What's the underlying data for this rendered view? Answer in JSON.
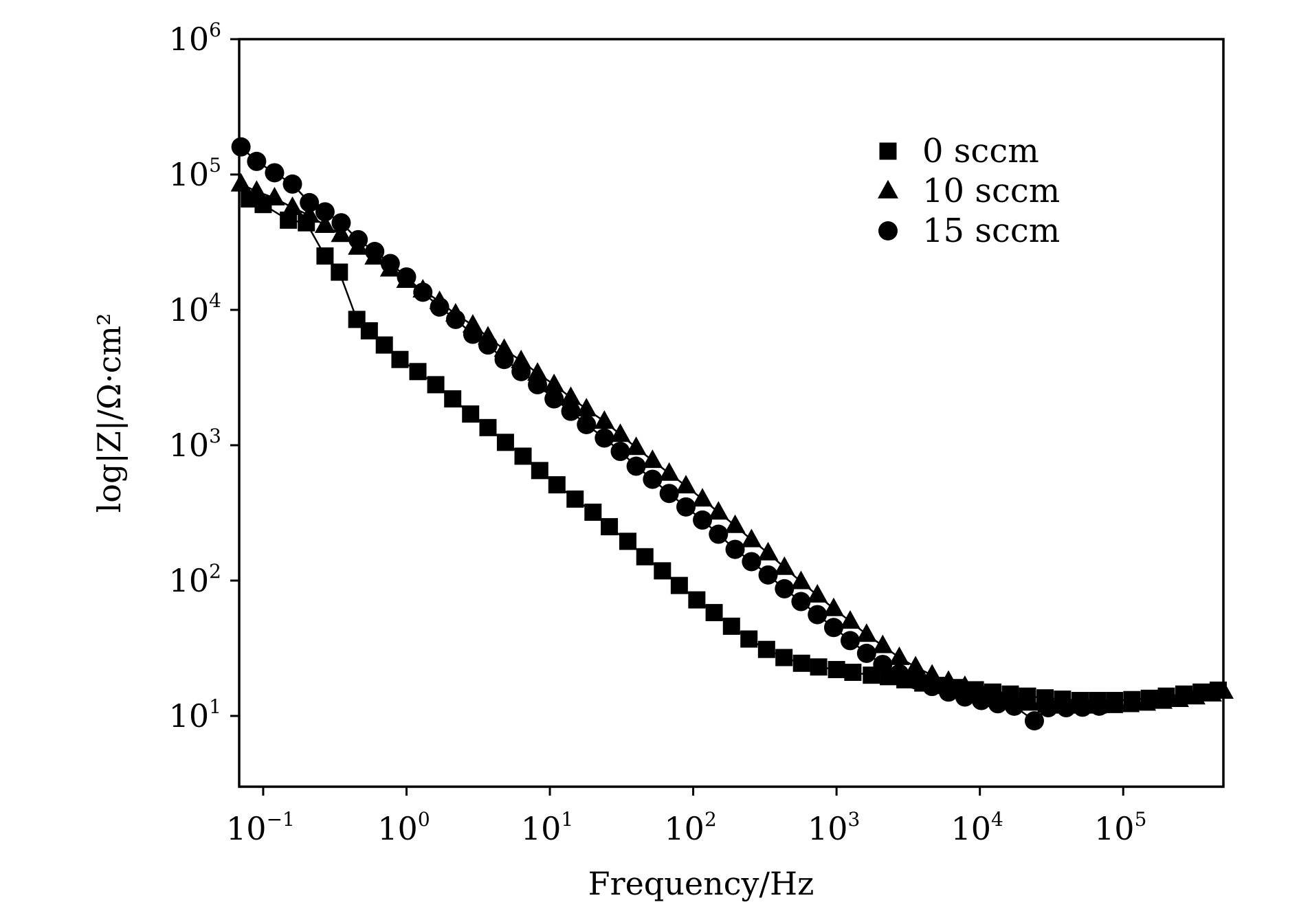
{
  "chart_data": {
    "type": "scatter",
    "xlabel": "Frequency/Hz",
    "ylabel": "log|Z|/Ω·cm²",
    "xscale": "log",
    "yscale": "log",
    "xlim": [
      0.068,
      500000
    ],
    "ylim": [
      3,
      1000000
    ],
    "grid": false,
    "legend_position": "top-right",
    "x_ticks": [
      {
        "base": "10",
        "exp": "−1",
        "value": 0.1
      },
      {
        "base": "10",
        "exp": "0",
        "value": 1
      },
      {
        "base": "10",
        "exp": "1",
        "value": 10
      },
      {
        "base": "10",
        "exp": "2",
        "value": 100
      },
      {
        "base": "10",
        "exp": "3",
        "value": 1000
      },
      {
        "base": "10",
        "exp": "4",
        "value": 10000
      },
      {
        "base": "10",
        "exp": "5",
        "value": 100000
      }
    ],
    "y_ticks": [
      {
        "base": "10",
        "exp": "1",
        "value": 10
      },
      {
        "base": "10",
        "exp": "2",
        "value": 100
      },
      {
        "base": "10",
        "exp": "3",
        "value": 1000
      },
      {
        "base": "10",
        "exp": "4",
        "value": 10000
      },
      {
        "base": "10",
        "exp": "5",
        "value": 100000
      },
      {
        "base": "10",
        "exp": "6",
        "value": 1000000
      }
    ],
    "series": [
      {
        "name": "0 sccm",
        "marker": "square",
        "points": [
          [
            0.08,
            66000
          ],
          [
            0.1,
            60000
          ],
          [
            0.15,
            46000
          ],
          [
            0.2,
            44000
          ],
          [
            0.27,
            25000
          ],
          [
            0.34,
            19000
          ],
          [
            0.45,
            8500
          ],
          [
            0.55,
            7000
          ],
          [
            0.7,
            5500
          ],
          [
            0.9,
            4300
          ],
          [
            1.2,
            3500
          ],
          [
            1.6,
            2800
          ],
          [
            2.1,
            2200
          ],
          [
            2.8,
            1700
          ],
          [
            3.7,
            1350
          ],
          [
            4.9,
            1050
          ],
          [
            6.5,
            830
          ],
          [
            8.5,
            650
          ],
          [
            11.2,
            510
          ],
          [
            15,
            400
          ],
          [
            20,
            320
          ],
          [
            26,
            250
          ],
          [
            35,
            195
          ],
          [
            46,
            150
          ],
          [
            61,
            118
          ],
          [
            80,
            92
          ],
          [
            106,
            72
          ],
          [
            140,
            58
          ],
          [
            185,
            46
          ],
          [
            245,
            37
          ],
          [
            325,
            31
          ],
          [
            430,
            27
          ],
          [
            570,
            24.5
          ],
          [
            750,
            23
          ],
          [
            1000,
            22
          ],
          [
            1300,
            21
          ],
          [
            1750,
            20
          ],
          [
            2300,
            19.5
          ],
          [
            3000,
            18.5
          ],
          [
            4000,
            17.5
          ],
          [
            5300,
            16.8
          ],
          [
            7000,
            16.2
          ],
          [
            9300,
            15.6
          ],
          [
            12300,
            15
          ],
          [
            16300,
            14.5
          ],
          [
            21500,
            14
          ],
          [
            28500,
            13.6
          ],
          [
            37700,
            13.3
          ],
          [
            50000,
            13
          ],
          [
            66000,
            13
          ],
          [
            87000,
            13
          ],
          [
            115000,
            13.2
          ],
          [
            152000,
            13.5
          ],
          [
            200000,
            14
          ],
          [
            265000,
            14.5
          ],
          [
            350000,
            15
          ],
          [
            460000,
            15.5
          ]
        ]
      },
      {
        "name": "10 sccm",
        "marker": "triangle",
        "points": [
          [
            0.07,
            85000
          ],
          [
            0.09,
            75000
          ],
          [
            0.12,
            67000
          ],
          [
            0.16,
            57000
          ],
          [
            0.21,
            50000
          ],
          [
            0.27,
            42000
          ],
          [
            0.35,
            36000
          ],
          [
            0.46,
            29000
          ],
          [
            0.6,
            24500
          ],
          [
            0.77,
            20000
          ],
          [
            1.0,
            16500
          ],
          [
            1.3,
            14000
          ],
          [
            1.7,
            11500
          ],
          [
            2.2,
            9300
          ],
          [
            2.9,
            7700
          ],
          [
            3.7,
            6300
          ],
          [
            4.8,
            5100
          ],
          [
            6.3,
            4200
          ],
          [
            8.2,
            3400
          ],
          [
            10.7,
            2800
          ],
          [
            14,
            2250
          ],
          [
            18,
            1850
          ],
          [
            24,
            1500
          ],
          [
            31,
            1200
          ],
          [
            40,
            960
          ],
          [
            52,
            770
          ],
          [
            68,
            620
          ],
          [
            89,
            500
          ],
          [
            116,
            400
          ],
          [
            150,
            320
          ],
          [
            196,
            255
          ],
          [
            255,
            200
          ],
          [
            333,
            160
          ],
          [
            433,
            125
          ],
          [
            565,
            98
          ],
          [
            735,
            78
          ],
          [
            955,
            62
          ],
          [
            1245,
            50
          ],
          [
            1620,
            40
          ],
          [
            2100,
            33
          ],
          [
            2740,
            27
          ],
          [
            3560,
            23
          ],
          [
            4640,
            20
          ],
          [
            6040,
            18
          ],
          [
            7860,
            16.5
          ],
          [
            10240,
            15
          ],
          [
            13340,
            14
          ],
          [
            17370,
            13
          ],
          [
            22620,
            12.4
          ],
          [
            29460,
            12
          ],
          [
            38370,
            11.8
          ],
          [
            50000,
            11.8
          ],
          [
            65100,
            11.8
          ],
          [
            84800,
            11.9
          ],
          [
            110400,
            12.1
          ],
          [
            143800,
            12.4
          ],
          [
            187300,
            12.8
          ],
          [
            243900,
            13.2
          ],
          [
            317600,
            13.8
          ],
          [
            413600,
            14.5
          ],
          [
            500000,
            15.2
          ]
        ]
      },
      {
        "name": "15 sccm",
        "marker": "circle",
        "points": [
          [
            0.07,
            160000
          ],
          [
            0.09,
            125000
          ],
          [
            0.12,
            103000
          ],
          [
            0.16,
            85000
          ],
          [
            0.21,
            62000
          ],
          [
            0.27,
            53000
          ],
          [
            0.35,
            44000
          ],
          [
            0.46,
            33000
          ],
          [
            0.6,
            27000
          ],
          [
            0.77,
            22000
          ],
          [
            1.0,
            17500
          ],
          [
            1.3,
            13500
          ],
          [
            1.7,
            10500
          ],
          [
            2.2,
            8500
          ],
          [
            2.9,
            6600
          ],
          [
            3.7,
            5500
          ],
          [
            4.8,
            4300
          ],
          [
            6.3,
            3500
          ],
          [
            8.2,
            2800
          ],
          [
            10.7,
            2200
          ],
          [
            14,
            1780
          ],
          [
            18,
            1420
          ],
          [
            24,
            1130
          ],
          [
            31,
            900
          ],
          [
            40,
            700
          ],
          [
            52,
            560
          ],
          [
            68,
            440
          ],
          [
            89,
            350
          ],
          [
            116,
            280
          ],
          [
            150,
            220
          ],
          [
            196,
            170
          ],
          [
            255,
            138
          ],
          [
            333,
            110
          ],
          [
            433,
            87
          ],
          [
            565,
            70
          ],
          [
            735,
            56
          ],
          [
            955,
            45
          ],
          [
            1245,
            36
          ],
          [
            1620,
            29
          ],
          [
            2100,
            24
          ],
          [
            2740,
            20.5
          ],
          [
            3560,
            18.5
          ],
          [
            4640,
            16.5
          ],
          [
            6040,
            15
          ],
          [
            7860,
            13.8
          ],
          [
            10240,
            13
          ],
          [
            13340,
            12.3
          ],
          [
            17370,
            11.8
          ],
          [
            24000,
            9.2
          ],
          [
            30000,
            11.5
          ],
          [
            40000,
            11.5
          ],
          [
            52000,
            11.6
          ],
          [
            68000,
            11.8
          ]
        ]
      }
    ]
  }
}
